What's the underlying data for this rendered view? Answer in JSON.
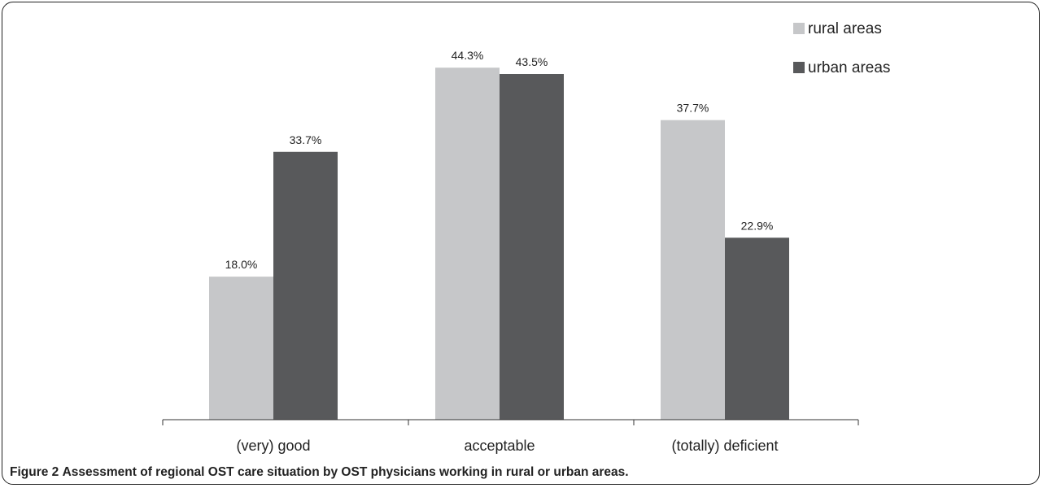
{
  "figure": {
    "label": "Figure 2",
    "caption": "Assessment of regional OST care situation by OST physicians working in rural or urban areas."
  },
  "chart_data": {
    "type": "bar",
    "categories": [
      "(very) good",
      "acceptable",
      "(totally) deficient"
    ],
    "series": [
      {
        "name": "rural areas",
        "values": [
          18.0,
          44.3,
          37.7
        ],
        "labels": [
          "18.0%",
          "44.3%",
          "37.7%"
        ],
        "color": "#c6c7c9"
      },
      {
        "name": "urban areas",
        "values": [
          33.7,
          43.5,
          22.9
        ],
        "labels": [
          "33.7%",
          "43.5%",
          "22.9%"
        ],
        "color": "#58595b"
      }
    ],
    "ylim": [
      0,
      50
    ],
    "grid": false,
    "legend": "top-right",
    "title": "",
    "xlabel": "",
    "ylabel": ""
  }
}
